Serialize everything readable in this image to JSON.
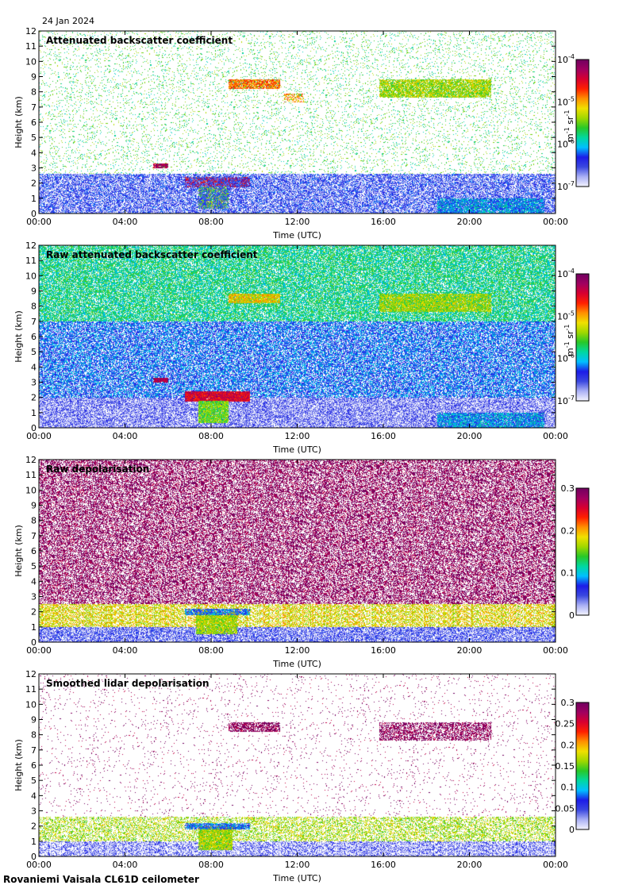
{
  "date": "24 Jan 2024",
  "footer": "Rovaniemi Vaisala CL61D ceilometer",
  "colors": {
    "colormap": [
      "#f4f4ff",
      "#aab0f5",
      "#3b48e0",
      "#1c1ce8",
      "#00c0ff",
      "#00d8a0",
      "#28c828",
      "#a0d800",
      "#f0e000",
      "#ff9000",
      "#ff2000",
      "#d80030",
      "#a00060",
      "#700060"
    ],
    "axis": "#000000",
    "background": "#ffffff"
  },
  "chart_data": [
    {
      "type": "heatmap",
      "title": "Attenuated backscatter coefficient",
      "xlabel": "Time (UTC)",
      "ylabel": "Height (km)",
      "xticks": [
        "00:00",
        "04:00",
        "08:00",
        "12:00",
        "16:00",
        "20:00",
        "00:00"
      ],
      "yticks": [
        "0",
        "1",
        "2",
        "3",
        "4",
        "5",
        "6",
        "7",
        "8",
        "9",
        "10",
        "11",
        "12"
      ],
      "ylim": [
        0,
        12
      ],
      "xlim_hours": [
        0,
        24
      ],
      "colorbar": {
        "scale": "log",
        "ticks": [
          {
            "base": "10",
            "exp": "-4"
          },
          {
            "base": "10",
            "exp": "-5"
          },
          {
            "base": "10",
            "exp": "-6"
          },
          {
            "base": "10",
            "exp": "-7"
          }
        ],
        "label": "m",
        "label_exp": "-1",
        "label2": " sr",
        "label2_exp": "-1"
      },
      "features": [
        {
          "t0": 8.8,
          "t1": 11.2,
          "h0": 8.2,
          "h1": 8.8,
          "level": 0.72,
          "density": 0.9
        },
        {
          "t0": 11.4,
          "t1": 12.3,
          "h0": 7.3,
          "h1": 7.9,
          "level": 0.68,
          "density": 0.5
        },
        {
          "t0": 15.8,
          "t1": 21.0,
          "h0": 7.6,
          "h1": 8.8,
          "level": 0.55,
          "density": 0.85
        },
        {
          "t0": 5.3,
          "t1": 6.0,
          "h0": 3.0,
          "h1": 3.3,
          "level": 0.92,
          "density": 0.95
        },
        {
          "t0": 6.8,
          "t1": 9.8,
          "h0": 1.7,
          "h1": 2.4,
          "level": 0.85,
          "density": 0.98
        },
        {
          "t0": 7.4,
          "t1": 8.8,
          "h0": 0.3,
          "h1": 1.8,
          "level": 0.5,
          "density": 0.95
        },
        {
          "t0": 0.0,
          "t1": 24.0,
          "h0": 0.0,
          "h1": 2.6,
          "level": 0.18,
          "density": 0.65
        },
        {
          "t0": 18.5,
          "t1": 23.5,
          "h0": 0.0,
          "h1": 1.0,
          "level": 0.3,
          "density": 0.8
        },
        {
          "t0": 0.0,
          "t1": 24.0,
          "h0": 2.6,
          "h1": 12.0,
          "level": 0.45,
          "density": 0.08
        }
      ]
    },
    {
      "type": "heatmap",
      "title": "Raw attenuated backscatter coefficient",
      "xlabel": "Time (UTC)",
      "ylabel": "Height (km)",
      "xticks": [
        "00:00",
        "04:00",
        "08:00",
        "12:00",
        "16:00",
        "20:00",
        "00:00"
      ],
      "yticks": [
        "0",
        "1",
        "2",
        "3",
        "4",
        "5",
        "6",
        "7",
        "8",
        "9",
        "10",
        "11",
        "12"
      ],
      "ylim": [
        0,
        12
      ],
      "xlim_hours": [
        0,
        24
      ],
      "colorbar": {
        "scale": "log",
        "ticks": [
          {
            "base": "10",
            "exp": "-4"
          },
          {
            "base": "10",
            "exp": "-5"
          },
          {
            "base": "10",
            "exp": "-6"
          },
          {
            "base": "10",
            "exp": "-7"
          }
        ],
        "label": "m",
        "label_exp": "-1",
        "label2": " sr",
        "label2_exp": "-1"
      },
      "features": [
        {
          "t0": 0.0,
          "t1": 24.0,
          "h0": 7.0,
          "h1": 12.0,
          "level": 0.4,
          "density": 0.75
        },
        {
          "t0": 0.0,
          "t1": 24.0,
          "h0": 2.0,
          "h1": 7.0,
          "level": 0.25,
          "density": 0.7
        },
        {
          "t0": 0.0,
          "t1": 24.0,
          "h0": 0.0,
          "h1": 2.0,
          "level": 0.12,
          "density": 0.75
        },
        {
          "t0": 8.8,
          "t1": 11.2,
          "h0": 8.2,
          "h1": 8.8,
          "level": 0.62,
          "density": 0.9
        },
        {
          "t0": 15.8,
          "t1": 21.0,
          "h0": 7.6,
          "h1": 8.8,
          "level": 0.55,
          "density": 0.85
        },
        {
          "t0": 5.3,
          "t1": 6.0,
          "h0": 3.0,
          "h1": 3.3,
          "level": 0.92,
          "density": 0.95
        },
        {
          "t0": 6.8,
          "t1": 9.8,
          "h0": 1.7,
          "h1": 2.4,
          "level": 0.85,
          "density": 0.98
        },
        {
          "t0": 7.4,
          "t1": 8.8,
          "h0": 0.3,
          "h1": 1.8,
          "level": 0.5,
          "density": 0.95
        },
        {
          "t0": 18.5,
          "t1": 23.5,
          "h0": 0.0,
          "h1": 1.0,
          "level": 0.3,
          "density": 0.85
        }
      ]
    },
    {
      "type": "heatmap",
      "title": "Raw depolarisation",
      "xlabel": "Time (UTC)",
      "ylabel": "Height (km)",
      "xticks": [
        "00:00",
        "04:00",
        "08:00",
        "12:00",
        "16:00",
        "20:00",
        "00:00"
      ],
      "yticks": [
        "0",
        "1",
        "2",
        "3",
        "4",
        "5",
        "6",
        "7",
        "8",
        "9",
        "10",
        "11",
        "12"
      ],
      "ylim": [
        0,
        12
      ],
      "xlim_hours": [
        0,
        24
      ],
      "colorbar": {
        "scale": "linear",
        "ticks": [
          {
            "base": "0.3"
          },
          {
            "base": "0.2"
          },
          {
            "base": "0.1"
          },
          {
            "base": "0"
          }
        ]
      },
      "features": [
        {
          "t0": 0.0,
          "t1": 24.0,
          "h0": 2.5,
          "h1": 12.0,
          "level": 0.97,
          "density": 0.55
        },
        {
          "t0": 0.0,
          "t1": 24.0,
          "h0": 1.0,
          "h1": 2.5,
          "level": 0.6,
          "density": 0.6
        },
        {
          "t0": 0.0,
          "t1": 24.0,
          "h0": 0.0,
          "h1": 1.0,
          "level": 0.15,
          "density": 0.7
        },
        {
          "t0": 7.3,
          "t1": 9.2,
          "h0": 0.5,
          "h1": 2.0,
          "level": 0.55,
          "density": 0.9
        },
        {
          "t0": 6.8,
          "t1": 9.8,
          "h0": 1.8,
          "h1": 2.2,
          "level": 0.25,
          "density": 0.8
        }
      ]
    },
    {
      "type": "heatmap",
      "title": "Smoothed lidar depolarisation",
      "xlabel": "Time (UTC)",
      "ylabel": "Height (km)",
      "xticks": [
        "00:00",
        "04:00",
        "08:00",
        "12:00",
        "16:00",
        "20:00",
        "00:00"
      ],
      "yticks": [
        "0",
        "1",
        "2",
        "3",
        "4",
        "5",
        "6",
        "7",
        "8",
        "9",
        "10",
        "11",
        "12"
      ],
      "ylim": [
        0,
        12
      ],
      "xlim_hours": [
        0,
        24
      ],
      "colorbar": {
        "scale": "linear",
        "ticks": [
          {
            "base": "0.3"
          },
          {
            "base": "0.25"
          },
          {
            "base": "0.2"
          },
          {
            "base": "0.15"
          },
          {
            "base": "0.1"
          },
          {
            "base": "0.05"
          },
          {
            "base": "0"
          }
        ]
      },
      "features": [
        {
          "t0": 8.8,
          "t1": 11.2,
          "h0": 8.2,
          "h1": 8.8,
          "level": 0.97,
          "density": 0.7
        },
        {
          "t0": 15.8,
          "t1": 21.0,
          "h0": 7.6,
          "h1": 8.8,
          "level": 0.97,
          "density": 0.55
        },
        {
          "t0": 0.0,
          "t1": 24.0,
          "h0": 2.6,
          "h1": 12.0,
          "level": 0.97,
          "density": 0.025
        },
        {
          "t0": 0.0,
          "t1": 24.0,
          "h0": 1.0,
          "h1": 2.6,
          "level": 0.55,
          "density": 0.45
        },
        {
          "t0": 0.0,
          "t1": 24.0,
          "h0": 0.0,
          "h1": 1.0,
          "level": 0.12,
          "density": 0.6
        },
        {
          "t0": 7.4,
          "t1": 9.0,
          "h0": 0.4,
          "h1": 2.0,
          "level": 0.55,
          "density": 0.95
        },
        {
          "t0": 6.8,
          "t1": 9.8,
          "h0": 1.8,
          "h1": 2.2,
          "level": 0.25,
          "density": 0.8
        }
      ]
    }
  ]
}
